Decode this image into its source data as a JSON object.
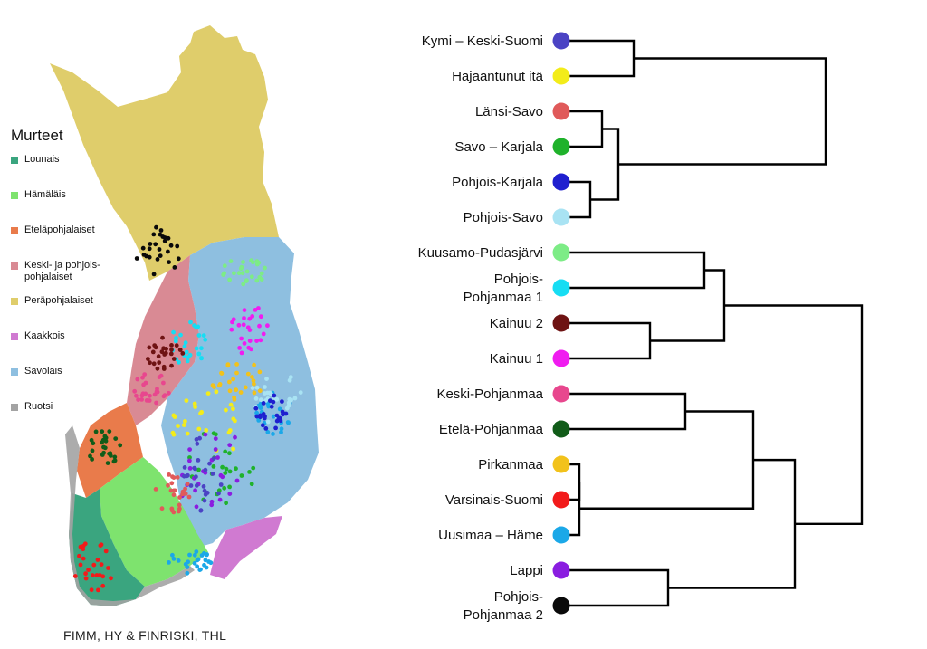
{
  "legend": {
    "title": "Murteet",
    "items": [
      {
        "label": "Lounais",
        "color": "#3aa57f"
      },
      {
        "label": "Hämäläis",
        "color": "#7ee36e"
      },
      {
        "label": "Eteläpohjalaiset",
        "color": "#e97b4b"
      },
      {
        "label": "Keski- ja pohjois-\npohjalaiset",
        "color": "#d98a94"
      },
      {
        "label": "Peräpohjalaiset",
        "color": "#dfcd6b"
      },
      {
        "label": "Kaakkois",
        "color": "#d07ad1"
      },
      {
        "label": "Savolais",
        "color": "#8ebfe0"
      },
      {
        "label": "Ruotsi",
        "color": "#a3a3a3"
      }
    ]
  },
  "credit": "FIMM, HY & FINRISKI, THL",
  "dendrogram": {
    "leaves": [
      {
        "label": [
          "Kymi – Keski-Suomi"
        ],
        "color": "#4b43c4"
      },
      {
        "label": [
          "Hajaantunut itä"
        ],
        "color": "#f3ec1a"
      },
      {
        "label": [
          "Länsi-Savo"
        ],
        "color": "#e05a5a"
      },
      {
        "label": [
          "Savo – Karjala"
        ],
        "color": "#1fb22b"
      },
      {
        "label": [
          "Pohjois-Karjala"
        ],
        "color": "#1f1fcf"
      },
      {
        "label": [
          "Pohjois-Savo"
        ],
        "color": "#a9e3f3"
      },
      {
        "label": [
          "Kuusamo-Pudasjärvi"
        ],
        "color": "#7dec86"
      },
      {
        "label": [
          "Pohjois-",
          "Pohjanmaa 1"
        ],
        "color": "#17ddf3"
      },
      {
        "label": [
          "Kainuu 2"
        ],
        "color": "#6e1313"
      },
      {
        "label": [
          "Kainuu 1"
        ],
        "color": "#f01cf0"
      },
      {
        "label": [
          "Keski-Pohjanmaa"
        ],
        "color": "#e8478e"
      },
      {
        "label": [
          "Etelä-Pohjanmaa"
        ],
        "color": "#115c19"
      },
      {
        "label": [
          "Pirkanmaa"
        ],
        "color": "#f2c21b"
      },
      {
        "label": [
          "Varsinais-Suomi"
        ],
        "color": "#f21b1b"
      },
      {
        "label": [
          "Uusimaa – Häme"
        ],
        "color": "#1ba8e8"
      },
      {
        "label": [
          "Lappi"
        ],
        "color": "#8a1de0"
      },
      {
        "label": [
          "Pohjois-",
          "Pohjanmaa 2"
        ],
        "color": "#0a0a0a"
      }
    ],
    "merges": [
      [
        0,
        1
      ],
      [
        2,
        3
      ],
      [
        4,
        5
      ],
      [
        18,
        19
      ],
      [
        6,
        7
      ],
      [
        8,
        9
      ],
      [
        21,
        22
      ],
      [
        12,
        13
      ],
      [
        24,
        14
      ],
      [
        10,
        11
      ],
      [
        26,
        25
      ],
      [
        15,
        16
      ],
      [
        27,
        28
      ],
      [
        20,
        17
      ],
      [
        23,
        29
      ]
    ]
  }
}
